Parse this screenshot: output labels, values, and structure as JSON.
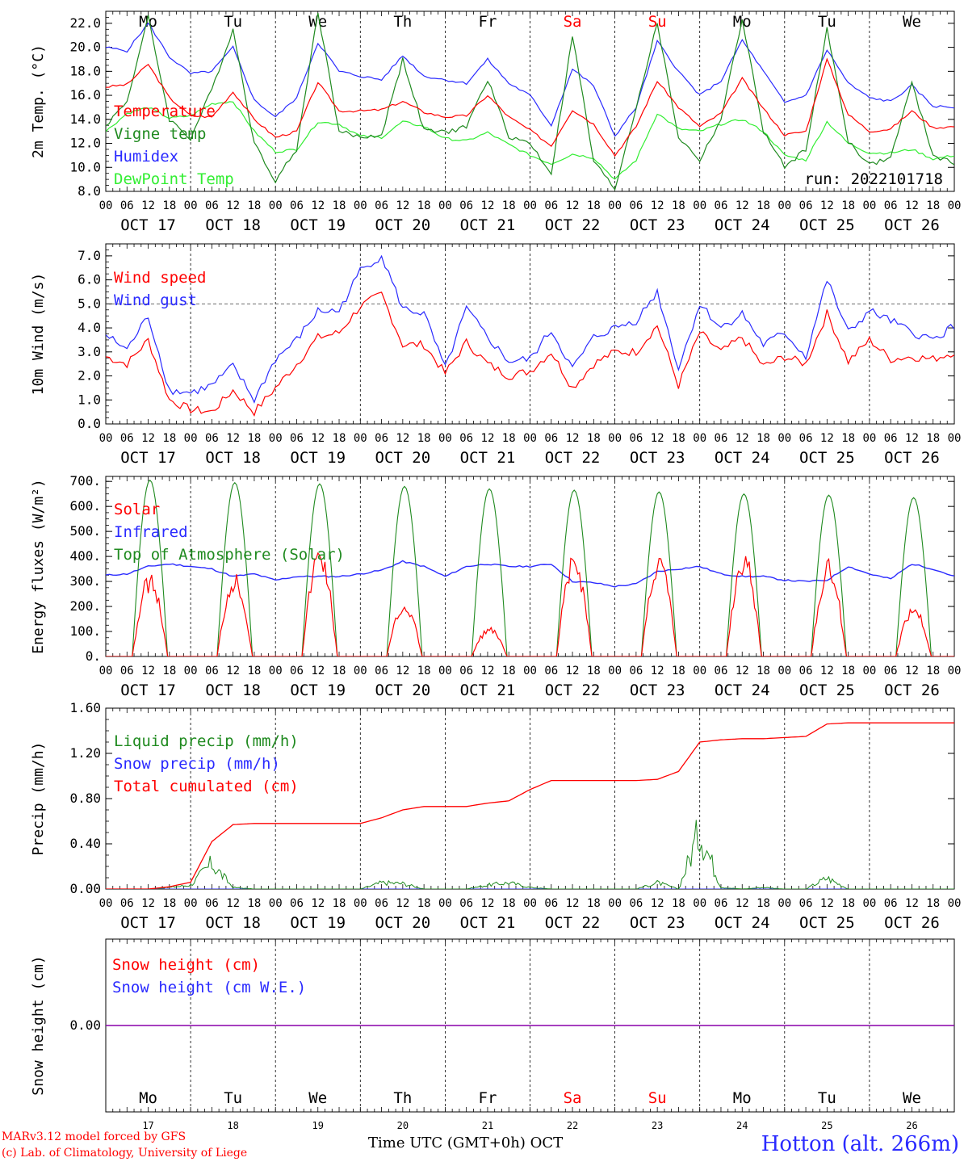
{
  "days": [
    {
      "dow": "Mo",
      "date": "OCT 17",
      "num": "17",
      "weekend": false
    },
    {
      "dow": "Tu",
      "date": "OCT 18",
      "num": "18",
      "weekend": false
    },
    {
      "dow": "We",
      "date": "OCT 19",
      "num": "19",
      "weekend": false
    },
    {
      "dow": "Th",
      "date": "OCT 20",
      "num": "20",
      "weekend": false
    },
    {
      "dow": "Fr",
      "date": "OCT 21",
      "num": "21",
      "weekend": false
    },
    {
      "dow": "Sa",
      "date": "OCT 22",
      "num": "22",
      "weekend": true
    },
    {
      "dow": "Su",
      "date": "OCT 23",
      "num": "23",
      "weekend": true
    },
    {
      "dow": "Mo",
      "date": "OCT 24",
      "num": "24",
      "weekend": false
    },
    {
      "dow": "Tu",
      "date": "OCT 25",
      "num": "25",
      "weekend": false
    },
    {
      "dow": "We",
      "date": "OCT 26",
      "num": "26",
      "weekend": false
    }
  ],
  "hour_ticks": [
    "00",
    "06",
    "12",
    "18"
  ],
  "final_hour_tick": "00",
  "colors": {
    "red": "#ff0000",
    "green": "#1f8a1f",
    "blue": "#2a2aff",
    "lightgreen": "#33ee33",
    "purple": "#8800aa"
  },
  "chart_data": [
    {
      "type": "line",
      "ylabel": "2m Temp. (°C)",
      "ylim": [
        8,
        23
      ],
      "yticks": [
        "8.0",
        "10.0",
        "12.0",
        "14.0",
        "16.0",
        "18.0",
        "20.0",
        "22.0"
      ],
      "yticks_values": [
        8,
        10,
        12,
        14,
        16,
        18,
        20,
        22
      ],
      "annotation": "run: 2022101718",
      "x_hours": [
        0,
        6,
        12,
        18,
        24,
        30,
        36,
        42,
        48,
        54,
        60,
        66,
        72,
        78,
        84,
        90,
        96,
        102,
        108,
        114,
        120,
        126,
        132,
        138,
        144,
        150,
        156,
        162,
        168,
        174,
        180,
        186,
        192,
        198,
        204,
        210,
        216,
        222,
        228,
        234,
        240
      ],
      "series": [
        {
          "name": "Temperature",
          "color": "red",
          "values": [
            16.7,
            16.9,
            18.6,
            15.8,
            14.3,
            14.2,
            16.3,
            14.0,
            12.5,
            13.0,
            17.1,
            14.7,
            14.7,
            14.8,
            15.5,
            14.6,
            14.2,
            14.3,
            16.0,
            14.2,
            13.1,
            11.8,
            14.8,
            13.6,
            11.0,
            13.4,
            17.2,
            15.0,
            13.4,
            14.5,
            17.4,
            14.9,
            12.7,
            13.0,
            19.0,
            14.4,
            13.0,
            13.2,
            14.7,
            13.3,
            13.4
          ]
        },
        {
          "name": "Vigne temp",
          "color": "green",
          "values": [
            13.5,
            15.5,
            22.5,
            14.0,
            12.4,
            16.5,
            21.5,
            12.0,
            8.9,
            11.5,
            23.0,
            13.0,
            12.5,
            12.7,
            19.0,
            13.1,
            12.9,
            13.4,
            17.3,
            12.6,
            12.0,
            9.5,
            21.0,
            10.5,
            8.2,
            15.0,
            22.0,
            12.5,
            10.6,
            14.0,
            22.4,
            13.0,
            10.0,
            11.5,
            21.5,
            12.2,
            10.2,
            10.8,
            17.0,
            11.0,
            10.3
          ]
        },
        {
          "name": "Humidex",
          "color": "blue",
          "values": [
            20.0,
            19.7,
            22.0,
            19.2,
            17.8,
            18.0,
            20.0,
            15.6,
            14.2,
            15.8,
            20.4,
            18.0,
            17.6,
            17.3,
            19.3,
            17.6,
            17.3,
            17.0,
            19.0,
            17.0,
            16.0,
            13.5,
            18.2,
            16.8,
            12.6,
            15.0,
            20.5,
            18.0,
            16.0,
            17.2,
            20.6,
            18.0,
            15.4,
            16.0,
            19.8,
            17.0,
            15.8,
            15.5,
            16.8,
            15.1,
            15.0
          ]
        },
        {
          "name": "DewPoint Temp",
          "color": "lightgreen",
          "values": [
            13.0,
            14.5,
            15.0,
            14.1,
            14.3,
            15.3,
            15.5,
            13.0,
            11.3,
            11.5,
            13.8,
            13.6,
            12.6,
            12.5,
            13.8,
            13.4,
            12.4,
            12.2,
            12.9,
            11.9,
            11.0,
            10.3,
            11.1,
            10.8,
            9.0,
            10.6,
            14.5,
            13.2,
            13.0,
            13.6,
            14.0,
            13.0,
            11.0,
            10.6,
            13.8,
            12.0,
            11.2,
            11.2,
            11.5,
            10.7,
            11.0
          ]
        }
      ]
    },
    {
      "type": "line",
      "ylabel": "10m Wind (m/s)",
      "ylim": [
        0,
        7.5
      ],
      "yticks": [
        "0.0",
        "1.0",
        "2.0",
        "3.0",
        "4.0",
        "5.0",
        "6.0",
        "7.0"
      ],
      "yticks_values": [
        0,
        1,
        2,
        3,
        4,
        5,
        6,
        7
      ],
      "ref_line": 5.0,
      "x_hours": [
        0,
        6,
        12,
        18,
        24,
        30,
        36,
        42,
        48,
        54,
        60,
        66,
        72,
        78,
        84,
        90,
        96,
        102,
        108,
        114,
        120,
        126,
        132,
        138,
        144,
        150,
        156,
        162,
        168,
        174,
        180,
        186,
        192,
        198,
        204,
        210,
        216,
        222,
        228,
        234,
        240
      ],
      "series": [
        {
          "name": "Wind speed",
          "color": "red",
          "values": [
            2.8,
            2.5,
            3.5,
            1.0,
            0.6,
            0.5,
            1.4,
            0.5,
            1.5,
            2.5,
            3.6,
            3.8,
            4.9,
            5.4,
            3.3,
            3.3,
            2.1,
            3.4,
            2.5,
            2.0,
            2.2,
            3.0,
            1.5,
            2.5,
            3.0,
            3.0,
            4.1,
            1.6,
            3.8,
            3.0,
            3.6,
            2.4,
            2.8,
            2.5,
            4.6,
            2.6,
            3.5,
            2.7,
            2.8,
            2.7,
            3.0
          ]
        },
        {
          "name": "Wind gust",
          "color": "blue",
          "values": [
            3.7,
            3.1,
            4.5,
            1.4,
            1.3,
            1.6,
            2.4,
            1.0,
            2.7,
            3.5,
            4.7,
            4.7,
            6.4,
            7.0,
            4.8,
            4.6,
            2.3,
            4.8,
            3.6,
            2.6,
            2.7,
            3.9,
            2.3,
            3.6,
            4.0,
            4.3,
            5.5,
            2.3,
            5.0,
            4.0,
            4.6,
            3.3,
            3.8,
            2.8,
            6.0,
            3.8,
            4.7,
            4.3,
            3.8,
            3.5,
            4.1
          ]
        }
      ]
    },
    {
      "type": "line",
      "ylabel": "Energy fluxes (W/m²)",
      "ylim": [
        0,
        720
      ],
      "yticks": [
        "0.",
        "100.",
        "200.",
        "300.",
        "400.",
        "500.",
        "600.",
        "700."
      ],
      "yticks_values": [
        0,
        100,
        200,
        300,
        400,
        500,
        600,
        700
      ],
      "daily_peaks": {
        "Top of Atmosphere (Solar)": [
          705,
          695,
          690,
          680,
          670,
          665,
          658,
          650,
          645,
          635
        ],
        "Solar": [
          340,
          345,
          455,
          225,
          120,
          420,
          420,
          430,
          390,
          215
        ]
      },
      "daylight_hours": [
        7.5,
        17.5
      ],
      "x_hours": [
        0,
        6,
        12,
        18,
        24,
        30,
        36,
        42,
        48,
        54,
        60,
        66,
        72,
        78,
        84,
        90,
        96,
        102,
        108,
        114,
        120,
        126,
        132,
        138,
        144,
        150,
        156,
        162,
        168,
        174,
        180,
        186,
        192,
        198,
        204,
        210,
        216,
        222,
        228,
        234,
        240
      ],
      "series": [
        {
          "name": "Solar",
          "color": "red"
        },
        {
          "name": "Infrared",
          "color": "blue",
          "values": [
            325,
            330,
            360,
            370,
            360,
            350,
            320,
            330,
            305,
            320,
            320,
            320,
            330,
            345,
            380,
            360,
            320,
            360,
            370,
            360,
            360,
            370,
            300,
            295,
            280,
            290,
            340,
            350,
            360,
            330,
            320,
            320,
            305,
            300,
            305,
            360,
            330,
            310,
            370,
            350,
            320
          ]
        },
        {
          "name": "Top of Atmosphere (Solar)",
          "color": "green"
        }
      ]
    },
    {
      "type": "line",
      "ylabel": "Precip (mm/h)",
      "ylim": [
        0,
        1.6
      ],
      "yticks": [
        "0.00",
        "0.40",
        "0.80",
        "1.20",
        "1.60"
      ],
      "yticks_values": [
        0,
        0.4,
        0.8,
        1.2,
        1.6
      ],
      "x_hours": [
        0,
        6,
        12,
        18,
        24,
        30,
        36,
        42,
        48,
        54,
        60,
        66,
        72,
        78,
        84,
        90,
        96,
        102,
        108,
        114,
        120,
        126,
        132,
        138,
        144,
        150,
        156,
        162,
        168,
        174,
        180,
        186,
        192,
        198,
        204,
        210,
        216,
        222,
        228,
        234,
        240
      ],
      "series": [
        {
          "name": "Liquid precip (mm/h)",
          "color": "green",
          "values": [
            0,
            0,
            0,
            0.02,
            0.05,
            0.32,
            0.02,
            0,
            0,
            0,
            0,
            0,
            0,
            0.08,
            0.07,
            0,
            0,
            0,
            0.05,
            0.08,
            0.02,
            0,
            0,
            0,
            0,
            0,
            0.08,
            0,
            0.75,
            0.02,
            0,
            0.02,
            0,
            0,
            0.14,
            0,
            0,
            0,
            0,
            0,
            0
          ]
        },
        {
          "name": "Snow precip (mm/h)",
          "color": "blue",
          "values": [
            0,
            0,
            0,
            0,
            0,
            0,
            0,
            0,
            0,
            0,
            0,
            0,
            0,
            0,
            0,
            0,
            0,
            0,
            0,
            0,
            0,
            0,
            0,
            0,
            0,
            0,
            0,
            0,
            0,
            0,
            0,
            0,
            0,
            0,
            0,
            0,
            0,
            0,
            0,
            0,
            0
          ]
        },
        {
          "name": "Total cumulated (cm)",
          "color": "red",
          "values": [
            0,
            0,
            0,
            0.02,
            0.06,
            0.42,
            0.57,
            0.58,
            0.58,
            0.58,
            0.58,
            0.58,
            0.58,
            0.63,
            0.7,
            0.73,
            0.73,
            0.73,
            0.76,
            0.78,
            0.88,
            0.96,
            0.96,
            0.96,
            0.96,
            0.96,
            0.97,
            1.04,
            1.3,
            1.32,
            1.33,
            1.33,
            1.34,
            1.35,
            1.46,
            1.47,
            1.47,
            1.47,
            1.47,
            1.47,
            1.47
          ]
        }
      ]
    },
    {
      "type": "line",
      "ylabel": "Snow height (cm)",
      "ylim": [
        -1,
        1
      ],
      "yticks": [
        "0.00"
      ],
      "yticks_values": [
        0
      ],
      "series": [
        {
          "name": "Snow height (cm)",
          "color": "red"
        },
        {
          "name": "Snow height (cm W.E.)",
          "color": "blue"
        }
      ],
      "values": [
        0,
        0
      ]
    }
  ],
  "footer": {
    "model": "MARv3.12 model forced by GFS",
    "credit": "(c) Lab. of Climatology, University of Liege",
    "xlabel": "Time UTC (GMT+0h) OCT",
    "station": "Hotton (alt. 266m)"
  }
}
